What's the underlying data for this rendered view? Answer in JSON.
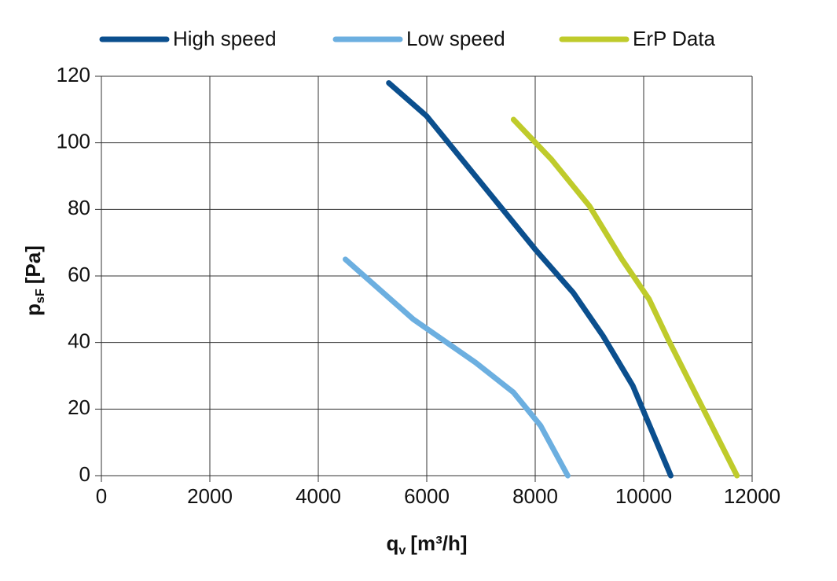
{
  "chart_data": {
    "type": "line",
    "x_label": "q",
    "x_label_sub": "v",
    "x_label_unit": "[m³/h]",
    "y_label": "p",
    "y_label_sub": "sF",
    "y_label_unit": "[Pa]",
    "xlim": [
      0,
      12000
    ],
    "xticks": [
      0,
      2000,
      4000,
      6000,
      8000,
      10000,
      12000
    ],
    "ylim": [
      0,
      120
    ],
    "yticks": [
      0,
      20,
      40,
      60,
      80,
      100,
      120
    ],
    "grid": true,
    "legend": "top",
    "series": [
      {
        "name": "High speed",
        "color": "#0b4f8e",
        "x": [
          5300,
          6000,
          8000,
          8700,
          9250,
          9800,
          10500
        ],
        "values": [
          118,
          108,
          68,
          55,
          42,
          27,
          0
        ]
      },
      {
        "name": "Low speed",
        "color": "#6cafe0",
        "x": [
          4500,
          5750,
          6900,
          7600,
          8100,
          8600
        ],
        "values": [
          65,
          47,
          34,
          25,
          15,
          0
        ]
      },
      {
        "name": "ErP Data",
        "color": "#bfcb2b",
        "x": [
          7600,
          8300,
          9000,
          9600,
          10100,
          10450,
          11100,
          11720
        ],
        "values": [
          107,
          95,
          81,
          65,
          53,
          41,
          20,
          0
        ]
      }
    ]
  }
}
